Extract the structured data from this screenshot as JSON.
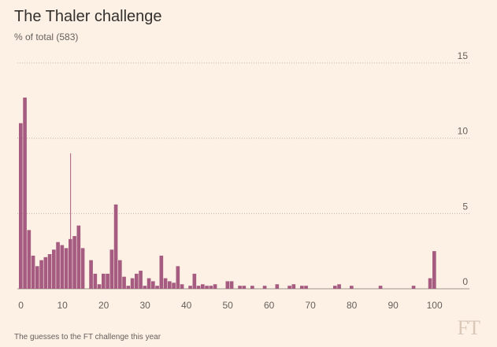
{
  "header": {
    "title": "The Thaler challenge",
    "subtitle": "% of total (583)"
  },
  "footer": {
    "source": "The guesses to the FT challenge this year",
    "logo": "FT"
  },
  "colors": {
    "bar": "#a65c80",
    "grid": "#bfb5aa",
    "axis_text": "#66605c",
    "marker": "#a65c80"
  },
  "chart_data": {
    "type": "bar",
    "title": "The Thaler challenge",
    "subtitle": "% of total (583)",
    "xlabel": "",
    "ylabel": "",
    "xlim": [
      0,
      100
    ],
    "ylim": [
      0,
      15
    ],
    "xticks": [
      0,
      10,
      20,
      30,
      40,
      50,
      60,
      70,
      80,
      90,
      100
    ],
    "yticks": [
      0,
      5,
      10,
      15
    ],
    "grid": "horizontal dotted",
    "marker_line": {
      "x": 12,
      "y": 9.0
    },
    "x": [
      0,
      1,
      2,
      3,
      4,
      5,
      6,
      7,
      8,
      9,
      10,
      11,
      12,
      13,
      14,
      15,
      16,
      17,
      18,
      19,
      20,
      21,
      22,
      23,
      24,
      25,
      26,
      27,
      28,
      29,
      30,
      31,
      32,
      33,
      34,
      35,
      36,
      37,
      38,
      39,
      40,
      41,
      42,
      43,
      44,
      45,
      46,
      47,
      48,
      49,
      50,
      51,
      52,
      53,
      54,
      55,
      56,
      57,
      58,
      59,
      60,
      61,
      62,
      63,
      64,
      65,
      66,
      67,
      68,
      69,
      70,
      71,
      72,
      73,
      74,
      75,
      76,
      77,
      78,
      79,
      80,
      81,
      82,
      83,
      84,
      85,
      86,
      87,
      88,
      89,
      90,
      91,
      92,
      93,
      94,
      95,
      96,
      97,
      98,
      99,
      100
    ],
    "values": [
      11.0,
      12.7,
      3.9,
      2.2,
      1.5,
      1.9,
      2.1,
      2.3,
      2.6,
      3.1,
      2.9,
      2.7,
      3.3,
      3.5,
      4.2,
      2.7,
      0.0,
      1.9,
      1.0,
      0.3,
      1.0,
      1.0,
      2.6,
      5.6,
      1.9,
      0.8,
      0.2,
      0.7,
      1.0,
      1.2,
      0.2,
      0.7,
      0.5,
      0.2,
      2.2,
      0.7,
      0.5,
      0.4,
      1.5,
      0.3,
      0.0,
      0.2,
      1.0,
      0.2,
      0.3,
      0.2,
      0.2,
      0.3,
      0.0,
      0.0,
      0.5,
      0.5,
      0.0,
      0.2,
      0.2,
      0.0,
      0.2,
      0.0,
      0.0,
      0.2,
      0.0,
      0.0,
      0.3,
      0.0,
      0.0,
      0.2,
      0.3,
      0.0,
      0.2,
      0.2,
      0.0,
      0.0,
      0.0,
      0.0,
      0.0,
      0.0,
      0.2,
      0.3,
      0.0,
      0.0,
      0.2,
      0.0,
      0.0,
      0.0,
      0.0,
      0.0,
      0.0,
      0.2,
      0.0,
      0.0,
      0.0,
      0.0,
      0.0,
      0.0,
      0.0,
      0.2,
      0.0,
      0.0,
      0.0,
      0.7,
      2.5
    ]
  }
}
